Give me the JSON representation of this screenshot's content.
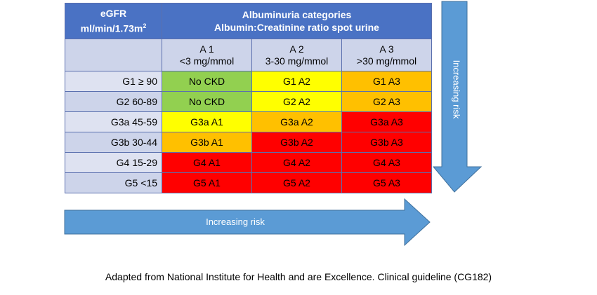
{
  "header": {
    "egfr_line1": "eGFR",
    "egfr_line2": "ml/min/1.73m",
    "egfr_sup": "2",
    "albuminuria_line1": "Albuminuria categories",
    "albuminuria_line2": "Albumin:Creatinine ratio spot urine"
  },
  "columns": [
    {
      "code": "A 1",
      "range": "<3 mg/mmol"
    },
    {
      "code": "A 2",
      "range": "3-30 mg/mmol"
    },
    {
      "code": "A 3",
      "range": ">30 mg/mmol"
    }
  ],
  "rows": [
    {
      "label": "G1 ≥ 90",
      "cells": [
        "No CKD",
        "G1 A2",
        "G1 A3"
      ],
      "risk": [
        "green",
        "yellow",
        "orange"
      ]
    },
    {
      "label": "G2 60-89",
      "cells": [
        "No CKD",
        "G2 A2",
        "G2 A3"
      ],
      "risk": [
        "green",
        "yellow",
        "orange"
      ]
    },
    {
      "label": "G3a 45-59",
      "cells": [
        "G3a A1",
        "G3a A2",
        "G3a A3"
      ],
      "risk": [
        "yellow",
        "orange",
        "red"
      ]
    },
    {
      "label": "G3b 30-44",
      "cells": [
        "G3b A1",
        "G3b A2",
        "G3b A3"
      ],
      "risk": [
        "orange",
        "red",
        "red"
      ]
    },
    {
      "label": "G4 15-29",
      "cells": [
        "G4 A1",
        "G4 A2",
        "G4 A3"
      ],
      "risk": [
        "red",
        "red",
        "red"
      ]
    },
    {
      "label": "G5 <15",
      "cells": [
        "G5 A1",
        "G5 A2",
        "G5 A3"
      ],
      "risk": [
        "red",
        "red",
        "red"
      ]
    }
  ],
  "risk_colors": {
    "green": "#92d050",
    "yellow": "#ffff00",
    "orange": "#ffc000",
    "red": "#ff0000"
  },
  "arrows": {
    "vertical_label": "Increasing risk",
    "horizontal_label": "Increasing risk",
    "fill": "#5b9bd5",
    "stroke": "#41719c"
  },
  "caption": "Adapted from National Institute for Health and are Excellence. Clinical guideline (CG182)"
}
